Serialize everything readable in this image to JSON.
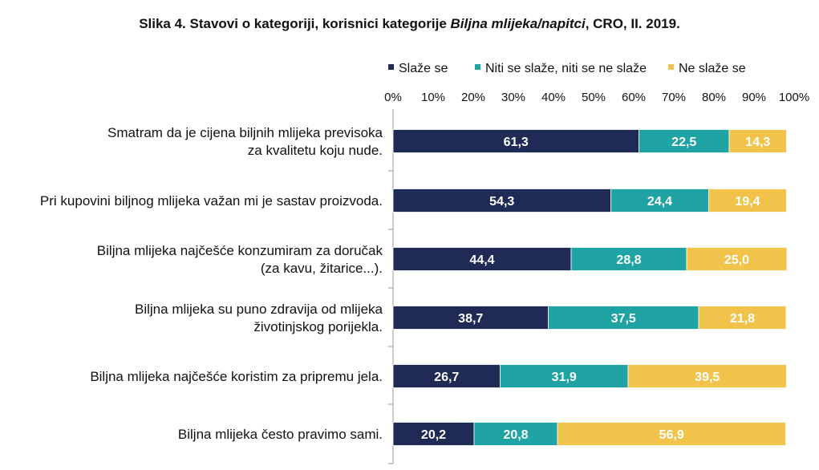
{
  "title": {
    "prefix": "Slika 4. Stavovi o kategoriji, korisnici kategorije ",
    "italic": "Biljna mlijeka/napitci",
    "suffix": ", CRO, II. 2019."
  },
  "chart_data": {
    "type": "bar",
    "stacked": true,
    "orientation": "horizontal",
    "xlim": [
      0,
      100
    ],
    "x_ticks": [
      "0%",
      "10%",
      "20%",
      "30%",
      "40%",
      "50%",
      "60%",
      "70%",
      "80%",
      "90%",
      "100%"
    ],
    "legend_position": "top",
    "categories": [
      [
        "Smatram da je cijena biljnih mlijeka previsoka",
        "za kvalitetu koju nude."
      ],
      [
        "Pri kupovini biljnog mlijeka važan mi je sastav proizvoda."
      ],
      [
        "Biljna mlijeka najčešće konzumiram za doručak",
        "(za kavu, žitarice...)."
      ],
      [
        "Biljna mlijeka su puno zdravija od mlijeka",
        "životinjskog porijekla."
      ],
      [
        "Biljna mlijeka najčešće koristim za pripremu jela."
      ],
      [
        "Biljna mlijeka često pravimo sami."
      ]
    ],
    "series": [
      {
        "name": "Slaže se",
        "color": "#1f2a55",
        "values": [
          61.3,
          54.3,
          44.4,
          38.7,
          26.7,
          20.2
        ],
        "labels": [
          "61,3",
          "54,3",
          "44,4",
          "38,7",
          "26,7",
          "20,2"
        ]
      },
      {
        "name": "Niti se slaže, niti se ne slaže",
        "color": "#1fa3a3",
        "values": [
          22.5,
          24.4,
          28.8,
          37.5,
          31.9,
          20.8
        ],
        "labels": [
          "22,5",
          "24,4",
          "28,8",
          "37,5",
          "31,9",
          "20,8"
        ]
      },
      {
        "name": "Ne slaže se",
        "color": "#f2c34a",
        "values": [
          14.3,
          19.4,
          25.0,
          21.8,
          39.5,
          56.9
        ],
        "labels": [
          "14,3",
          "19,4",
          "25,0",
          "21,8",
          "39,5",
          "56,9"
        ]
      }
    ]
  }
}
